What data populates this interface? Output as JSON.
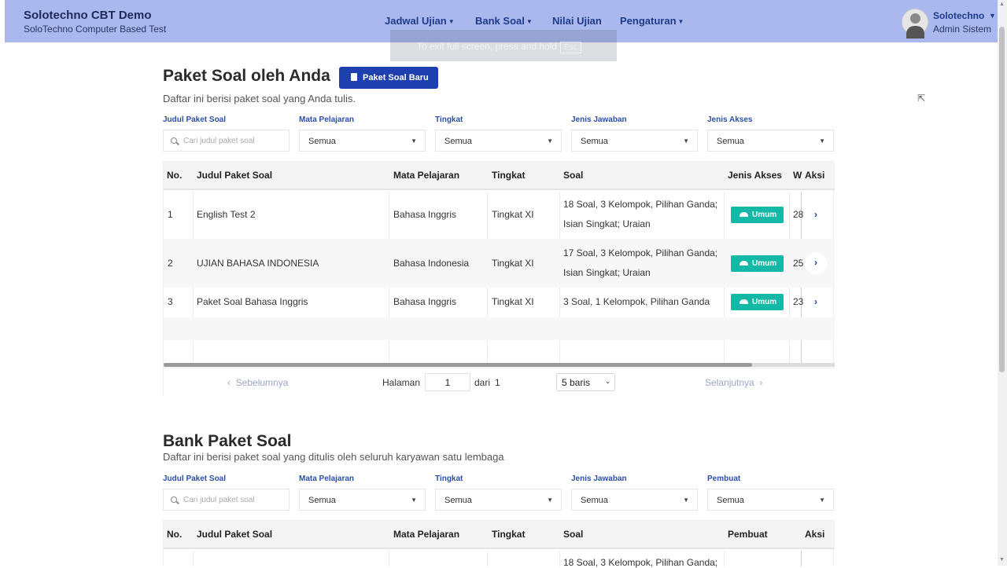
{
  "header": {
    "app_title": "Solotechno CBT Demo",
    "app_subtitle": "SoloTechno Computer Based Test",
    "nav": [
      {
        "label": "Jadwal Ujian"
      },
      {
        "label": "Bank Soal"
      },
      {
        "label": "Nilai Ujian"
      },
      {
        "label": "Pengaturan"
      }
    ],
    "user": {
      "name": "Solotechno",
      "role": "Admin Sistem"
    }
  },
  "fullscreen_notice": {
    "text": "To exit full screen, press and hold",
    "key": "Esc"
  },
  "my_packages": {
    "title": "Paket Soal oleh Anda",
    "new_button": "Paket Soal Baru",
    "description": "Daftar ini berisi paket soal yang Anda tulis.",
    "filters": [
      {
        "label": "Judul Paket Soal",
        "placeholder": "Cari judul paket soal"
      },
      {
        "label": "Mata Pelajaran",
        "value": "Semua"
      },
      {
        "label": "Tingkat",
        "value": "Semua"
      },
      {
        "label": "Jenis Jawaban",
        "value": "Semua"
      },
      {
        "label": "Jenis Akses",
        "value": "Semua"
      }
    ],
    "columns": [
      "No.",
      "Judul Paket Soal",
      "Mata Pelajaran",
      "Tingkat",
      "Soal",
      "Jenis Akses",
      "W",
      "Aksi"
    ],
    "rows": [
      {
        "no": "1",
        "title": "English Test 2",
        "subject": "Bahasa Inggris",
        "level": "Tingkat XI",
        "soal1": "18 Soal, 3 Kelompok, Pilihan Ganda;",
        "soal2": "Isian Singkat; Uraian",
        "access": "Umum",
        "w": "28"
      },
      {
        "no": "2",
        "title": "UJIAN BAHASA INDONESIA",
        "subject": "Bahasa Indonesia",
        "level": "Tingkat XI",
        "soal1": "17 Soal, 3 Kelompok, Pilihan Ganda;",
        "soal2": "Isian Singkat; Uraian",
        "access": "Umum",
        "w": "25"
      },
      {
        "no": "3",
        "title": "Paket Soal Bahasa Inggris",
        "subject": "Bahasa Inggris",
        "level": "Tingkat XI",
        "soal1": "3 Soal, 1 Kelompok, Pilihan Ganda",
        "soal2": "",
        "access": "Umum",
        "w": "23"
      }
    ],
    "pager": {
      "prev": "Sebelumnya",
      "page_label": "Halaman",
      "page": "1",
      "of_label": "dari",
      "total": "1",
      "rows_option": "5 baris",
      "next": "Selanjutnya"
    }
  },
  "bank_packages": {
    "title": "Bank Paket Soal",
    "description": "Daftar ini berisi paket soal yang ditulis oleh seluruh karyawan satu lembaga",
    "filters": [
      {
        "label": "Judul Paket Soal",
        "placeholder": "Cari judul paket soal"
      },
      {
        "label": "Mata Pelajaran",
        "value": "Semua"
      },
      {
        "label": "Tingkat",
        "value": "Semua"
      },
      {
        "label": "Jenis Jawaban",
        "value": "Semua"
      },
      {
        "label": "Pembuat",
        "value": "Semua"
      }
    ],
    "columns": [
      "No.",
      "Judul Paket Soal",
      "Mata Pelajaran",
      "Tingkat",
      "Soal",
      "Pembuat",
      "Aksi"
    ],
    "first_row_partial": "18 Soal, 3 Kelompok, Pilihan Ganda;"
  },
  "icons": {
    "search": "search-icon",
    "book": "book-icon",
    "people": "users-icon",
    "chevron": "chevron-right-icon",
    "caret": "caret-down-icon"
  },
  "colors": {
    "header_bg": "#aab8ee",
    "primary": "#1e40af",
    "badge": "#14b8a6",
    "label": "#2b4fa8"
  }
}
